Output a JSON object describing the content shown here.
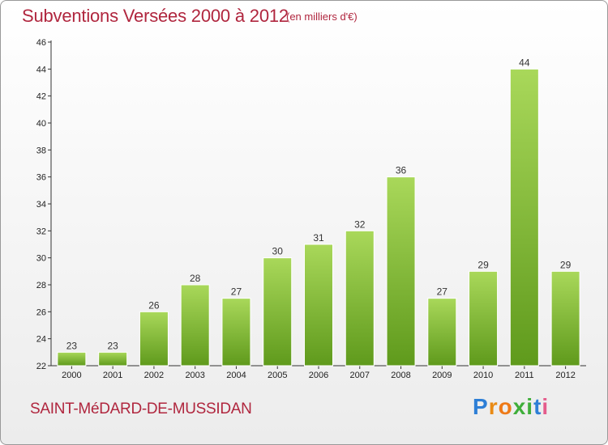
{
  "header": {
    "title": "Subventions Versées 2000 à 2012",
    "unit_note": "(en milliers d'€)"
  },
  "footer": {
    "commune": "SAINT-MéDARD-DE-MUSSIDAN",
    "brand": "Proxiti",
    "brand_letter_colors": [
      "#2e7fd6",
      "#e98a14",
      "#ee7a18",
      "#3fae3a",
      "#3fae3a",
      "#2e7fd6",
      "#e45c8c"
    ]
  },
  "colors": {
    "title": "#b0263e",
    "bar_top": "#a9d85a",
    "bar_bottom": "#5f9a1c",
    "axis": "#333333"
  },
  "chart_data": {
    "type": "bar",
    "categories": [
      "2000",
      "2001",
      "2002",
      "2003",
      "2004",
      "2005",
      "2006",
      "2007",
      "2008",
      "2009",
      "2010",
      "2011",
      "2012"
    ],
    "values": [
      23,
      23,
      26,
      28,
      27,
      30,
      31,
      32,
      36,
      27,
      29,
      44,
      29
    ],
    "title": "Subventions Versées 2000 à 2012",
    "ylim": [
      22,
      46
    ],
    "yticks": [
      22,
      24,
      26,
      28,
      30,
      32,
      34,
      36,
      38,
      40,
      42,
      44,
      46
    ],
    "grid": false,
    "legend": "none",
    "data_labels": true
  }
}
